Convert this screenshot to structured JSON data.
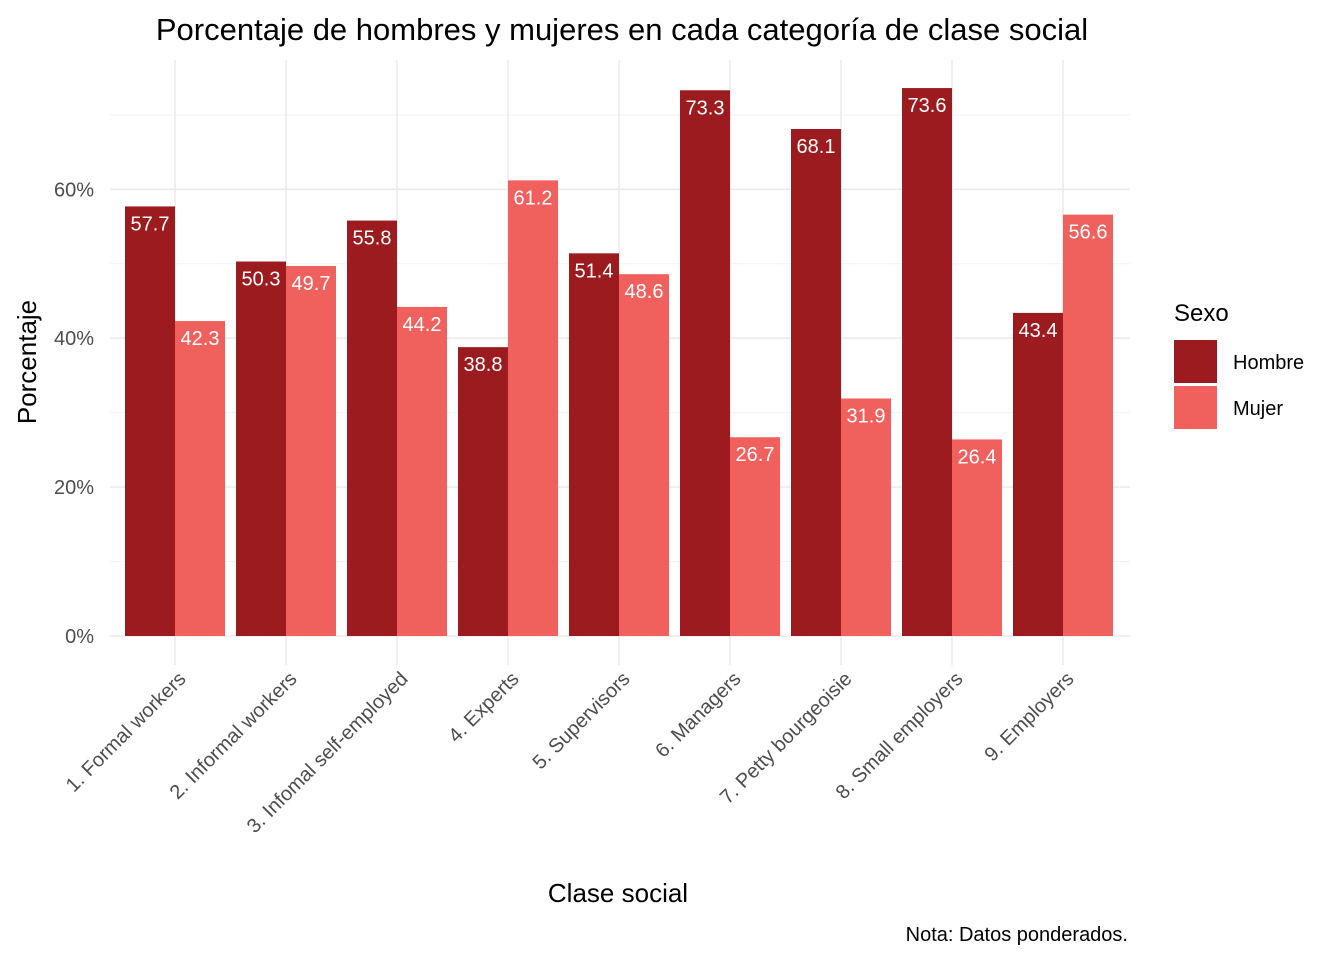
{
  "chart_data": {
    "type": "bar",
    "title": "Porcentaje de hombres y mujeres en cada categoría de clase social",
    "xlabel": "Clase social",
    "ylabel": "Porcentaje",
    "caption": "Nota: Datos ponderados.",
    "categories": [
      "1. Formal workers",
      "2. Informal workers",
      "3. Infomal self-employed",
      "4. Experts",
      "5. Supervisors",
      "6. Managers",
      "7. Petty bourgeoisie",
      "8. Small employers",
      "9. Employers"
    ],
    "series": [
      {
        "name": "Hombre",
        "color": "#9b1b1f",
        "values": [
          57.7,
          50.3,
          55.8,
          38.8,
          51.4,
          73.3,
          68.1,
          73.6,
          43.4
        ]
      },
      {
        "name": "Mujer",
        "color": "#f0605d",
        "values": [
          42.3,
          49.7,
          44.2,
          61.2,
          48.6,
          26.7,
          31.9,
          26.4,
          56.6
        ]
      }
    ],
    "ylim": [
      0,
      80
    ],
    "yticks": [
      0,
      20,
      40,
      60
    ],
    "ytick_labels": [
      "0%",
      "20%",
      "40%",
      "60%"
    ],
    "legend": {
      "title": "Sexo",
      "position": "right"
    },
    "grid": true
  }
}
